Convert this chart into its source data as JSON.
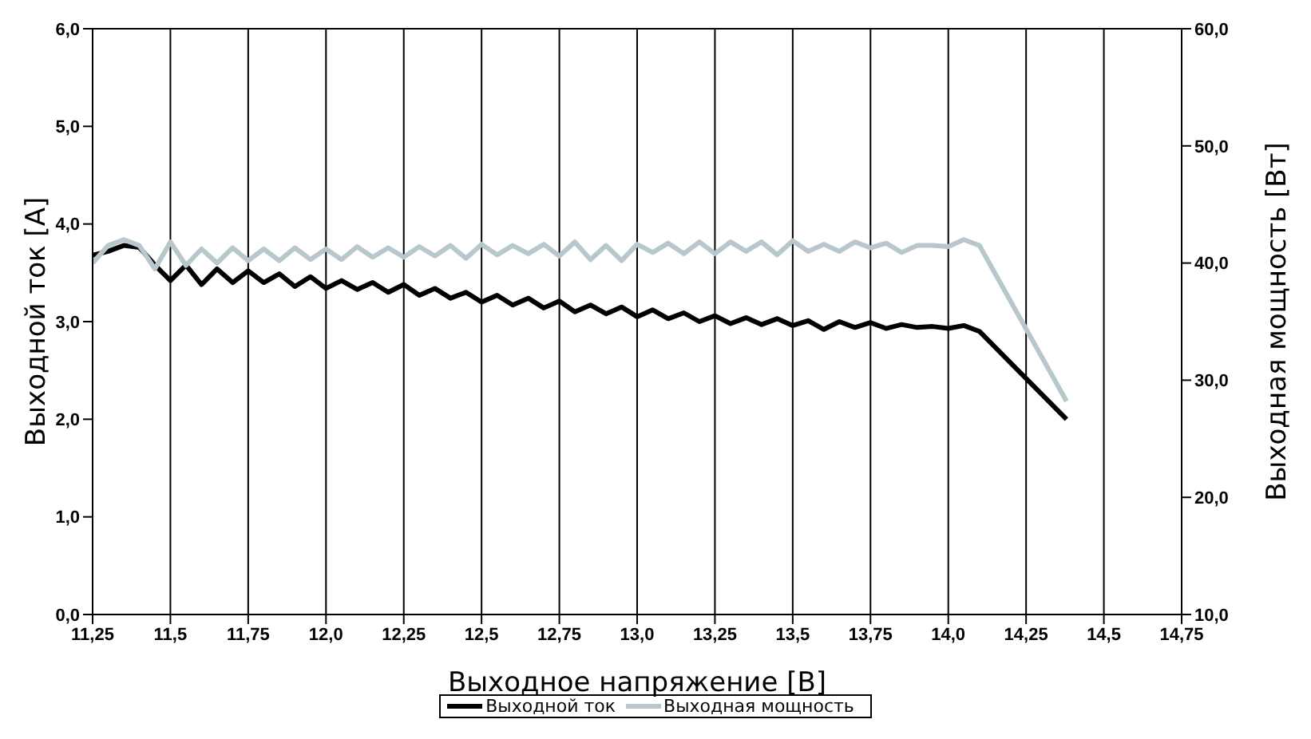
{
  "chart_data": {
    "type": "line",
    "xlabel": "Выходное напряжение [В]",
    "ylabel": "Выходной ток [А]",
    "y2label": "Выходная мощность [Вт]",
    "x": [
      11.25,
      11.3,
      11.35,
      11.4,
      11.45,
      11.5,
      11.55,
      11.6,
      11.65,
      11.7,
      11.75,
      11.8,
      11.85,
      11.9,
      11.95,
      12.0,
      12.05,
      12.1,
      12.15,
      12.2,
      12.25,
      12.3,
      12.35,
      12.4,
      12.45,
      12.5,
      12.55,
      12.6,
      12.65,
      12.7,
      12.75,
      12.8,
      12.85,
      12.9,
      12.95,
      13.0,
      13.05,
      13.1,
      13.15,
      13.2,
      13.25,
      13.3,
      13.35,
      13.4,
      13.45,
      13.5,
      13.55,
      13.6,
      13.65,
      13.7,
      13.75,
      13.8,
      13.85,
      13.9,
      13.95,
      14.0,
      14.05,
      14.1,
      14.38
    ],
    "series": [
      {
        "name": "Выходной ток",
        "color": "#000000",
        "values": [
          3.68,
          3.72,
          3.78,
          3.76,
          3.58,
          3.42,
          3.58,
          3.38,
          3.54,
          3.4,
          3.52,
          3.4,
          3.49,
          3.36,
          3.46,
          3.34,
          3.42,
          3.33,
          3.4,
          3.3,
          3.38,
          3.27,
          3.34,
          3.24,
          3.3,
          3.2,
          3.27,
          3.17,
          3.24,
          3.14,
          3.21,
          3.1,
          3.17,
          3.08,
          3.15,
          3.05,
          3.12,
          3.03,
          3.09,
          3.0,
          3.06,
          2.98,
          3.04,
          2.97,
          3.03,
          2.96,
          3.01,
          2.92,
          3.0,
          2.94,
          2.99,
          2.93,
          2.97,
          2.94,
          2.95,
          2.93,
          2.96,
          2.9,
          2.0
        ]
      },
      {
        "name": "Выходная мощность",
        "color": "#b8c7cc",
        "axis": "y2",
        "values": [
          40.0,
          41.5,
          42.0,
          41.5,
          39.5,
          41.8,
          39.8,
          41.2,
          40.0,
          41.3,
          40.2,
          41.2,
          40.2,
          41.3,
          40.3,
          41.2,
          40.3,
          41.4,
          40.5,
          41.3,
          40.5,
          41.4,
          40.6,
          41.5,
          40.4,
          41.6,
          40.7,
          41.5,
          40.8,
          41.6,
          40.6,
          41.8,
          40.3,
          41.5,
          40.2,
          41.6,
          40.9,
          41.7,
          40.8,
          41.8,
          40.8,
          41.8,
          41.0,
          41.8,
          40.7,
          41.9,
          41.0,
          41.6,
          41.0,
          41.8,
          41.3,
          41.7,
          40.9,
          41.5,
          41.5,
          41.4,
          42.0,
          41.5,
          28.2
        ]
      }
    ],
    "xlim": [
      11.25,
      14.75
    ],
    "xticks": [
      {
        "value": 11.25,
        "label": "11,25"
      },
      {
        "value": 11.5,
        "label": "11,5"
      },
      {
        "value": 11.75,
        "label": "11,75"
      },
      {
        "value": 12.0,
        "label": "12,0"
      },
      {
        "value": 12.25,
        "label": "12,25"
      },
      {
        "value": 12.5,
        "label": "12,5"
      },
      {
        "value": 12.75,
        "label": "12,75"
      },
      {
        "value": 13.0,
        "label": "13,0"
      },
      {
        "value": 13.25,
        "label": "13,25"
      },
      {
        "value": 13.5,
        "label": "13,5"
      },
      {
        "value": 13.75,
        "label": "13,75"
      },
      {
        "value": 14.0,
        "label": "14,0"
      },
      {
        "value": 14.25,
        "label": "14,25"
      },
      {
        "value": 14.5,
        "label": "14,5"
      },
      {
        "value": 14.75,
        "label": "14,75"
      }
    ],
    "ylim": [
      0,
      6
    ],
    "yticks": [
      {
        "value": 0,
        "label": "0,0"
      },
      {
        "value": 1,
        "label": "1,0"
      },
      {
        "value": 2,
        "label": "2,0"
      },
      {
        "value": 3,
        "label": "3,0"
      },
      {
        "value": 4,
        "label": "4,0"
      },
      {
        "value": 5,
        "label": "5,0"
      },
      {
        "value": 6,
        "label": "6,0"
      }
    ],
    "y2lim": [
      10,
      60
    ],
    "y2ticks": [
      {
        "value": 10,
        "label": "10,0"
      },
      {
        "value": 20,
        "label": "20,0"
      },
      {
        "value": 30,
        "label": "30,0"
      },
      {
        "value": 40,
        "label": "40,0"
      },
      {
        "value": 50,
        "label": "50,0"
      },
      {
        "value": 60,
        "label": "60,0"
      }
    ],
    "grid": true,
    "legend": "bottom",
    "marker": "none",
    "line_style": "solid"
  }
}
